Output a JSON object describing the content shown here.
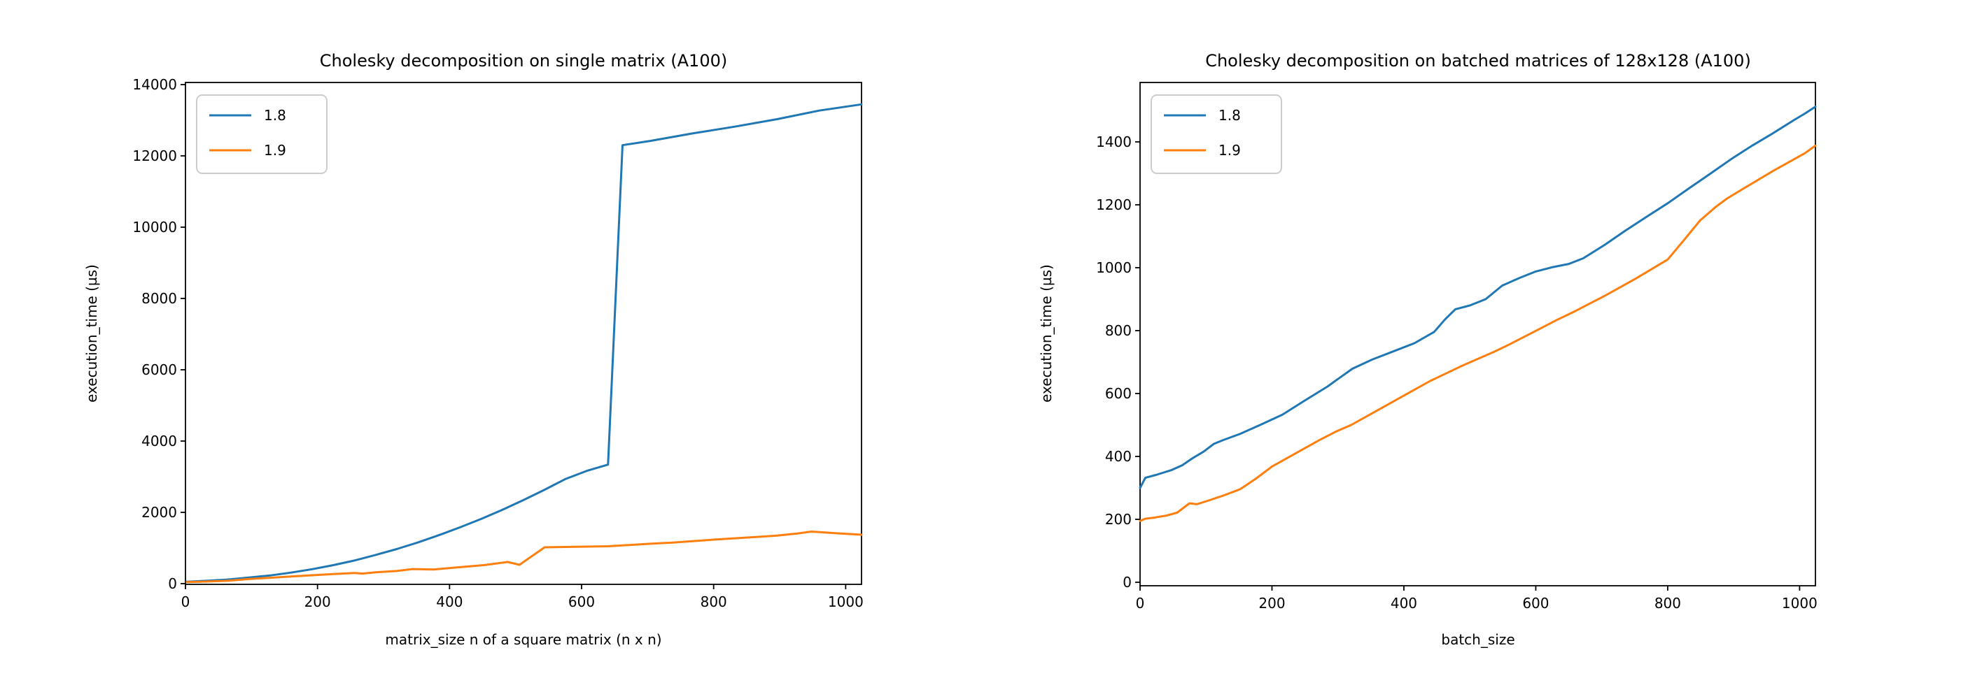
{
  "figure": {
    "background": "#ffffff",
    "text_color": "#000000",
    "spine_color": "#000000"
  },
  "chart_data": [
    {
      "type": "line",
      "title": "Cholesky decomposition on single matrix (A100)",
      "xlabel": "matrix_size n of a square matrix (n x n)",
      "ylabel": "execution_time (µs)",
      "xlim": [
        0,
        1024
      ],
      "ylim": [
        0,
        14000
      ],
      "xticks": [
        0,
        200,
        400,
        600,
        800,
        1000
      ],
      "yticks": [
        0,
        2000,
        4000,
        6000,
        8000,
        10000,
        12000,
        14000
      ],
      "grid": false,
      "legend_position": "upper left",
      "series": [
        {
          "name": "1.8",
          "color": "#1f77b4",
          "x": [
            2,
            32,
            64,
            96,
            128,
            160,
            192,
            224,
            256,
            288,
            320,
            352,
            384,
            416,
            448,
            480,
            512,
            544,
            576,
            608,
            640,
            662,
            704,
            768,
            832,
            896,
            960,
            1024
          ],
          "y": [
            55,
            80,
            115,
            170,
            230,
            310,
            405,
            520,
            650,
            805,
            970,
            1155,
            1360,
            1580,
            1815,
            2070,
            2345,
            2635,
            2940,
            3165,
            3340,
            12300,
            12420,
            12630,
            12820,
            13030,
            13270,
            13445
          ]
        },
        {
          "name": "1.9",
          "color": "#ff7f0e",
          "x": [
            2,
            32,
            64,
            96,
            128,
            160,
            192,
            224,
            256,
            268,
            288,
            320,
            344,
            376,
            416,
            452,
            488,
            506,
            544,
            576,
            608,
            640,
            672,
            704,
            736,
            768,
            800,
            832,
            864,
            896,
            928,
            948,
            992,
            1024
          ],
          "y": [
            45,
            58,
            80,
            130,
            165,
            200,
            235,
            270,
            300,
            282,
            320,
            355,
            410,
            398,
            462,
            520,
            608,
            529,
            1020,
            1030,
            1040,
            1050,
            1085,
            1120,
            1150,
            1190,
            1235,
            1272,
            1308,
            1348,
            1410,
            1460,
            1408,
            1372
          ]
        }
      ]
    },
    {
      "type": "line",
      "title": "Cholesky decomposition on batched matrices of 128x128 (A100)",
      "xlabel": "batch_size",
      "ylabel": "execution_time (µs)",
      "xlim": [
        0,
        1024
      ],
      "ylim": [
        0,
        1580
      ],
      "xticks": [
        0,
        200,
        400,
        600,
        800,
        1000
      ],
      "yticks": [
        0,
        200,
        400,
        600,
        800,
        1000,
        1200,
        1400
      ],
      "grid": false,
      "legend_position": "upper left",
      "series": [
        {
          "name": "1.8",
          "color": "#1f77b4",
          "x": [
            0,
            8,
            24,
            48,
            64,
            80,
            96,
            112,
            126,
            152,
            184,
            216,
            250,
            284,
            322,
            352,
            384,
            416,
            446,
            462,
            478,
            500,
            524,
            549,
            576,
            600,
            626,
            650,
            672,
            704,
            736,
            768,
            800,
            832,
            864,
            896,
            928,
            960,
            992,
            1008,
            1024
          ],
          "y": [
            300,
            332,
            341,
            357,
            372,
            395,
            415,
            440,
            452,
            472,
            502,
            533,
            578,
            622,
            679,
            708,
            734,
            760,
            796,
            835,
            868,
            880,
            900,
            943,
            968,
            988,
            1002,
            1012,
            1030,
            1072,
            1118,
            1162,
            1205,
            1252,
            1298,
            1345,
            1388,
            1428,
            1470,
            1490,
            1512
          ]
        },
        {
          "name": "1.9",
          "color": "#ff7f0e",
          "x": [
            0,
            8,
            20,
            40,
            56,
            75,
            86,
            104,
            128,
            152,
            176,
            200,
            224,
            248,
            272,
            296,
            320,
            344,
            368,
            392,
            416,
            440,
            464,
            488,
            512,
            536,
            560,
            584,
            608,
            632,
            656,
            680,
            704,
            728,
            752,
            776,
            800,
            824,
            849,
            872,
            890,
            912,
            936,
            960,
            984,
            1008,
            1024
          ],
          "y": [
            195,
            202,
            205,
            212,
            221,
            251,
            248,
            260,
            277,
            296,
            330,
            368,
            396,
            424,
            452,
            478,
            500,
            528,
            556,
            584,
            612,
            640,
            664,
            688,
            710,
            732,
            756,
            782,
            808,
            834,
            858,
            884,
            910,
            938,
            966,
            996,
            1026,
            1086,
            1150,
            1192,
            1220,
            1248,
            1278,
            1308,
            1336,
            1364,
            1388
          ]
        }
      ]
    }
  ]
}
